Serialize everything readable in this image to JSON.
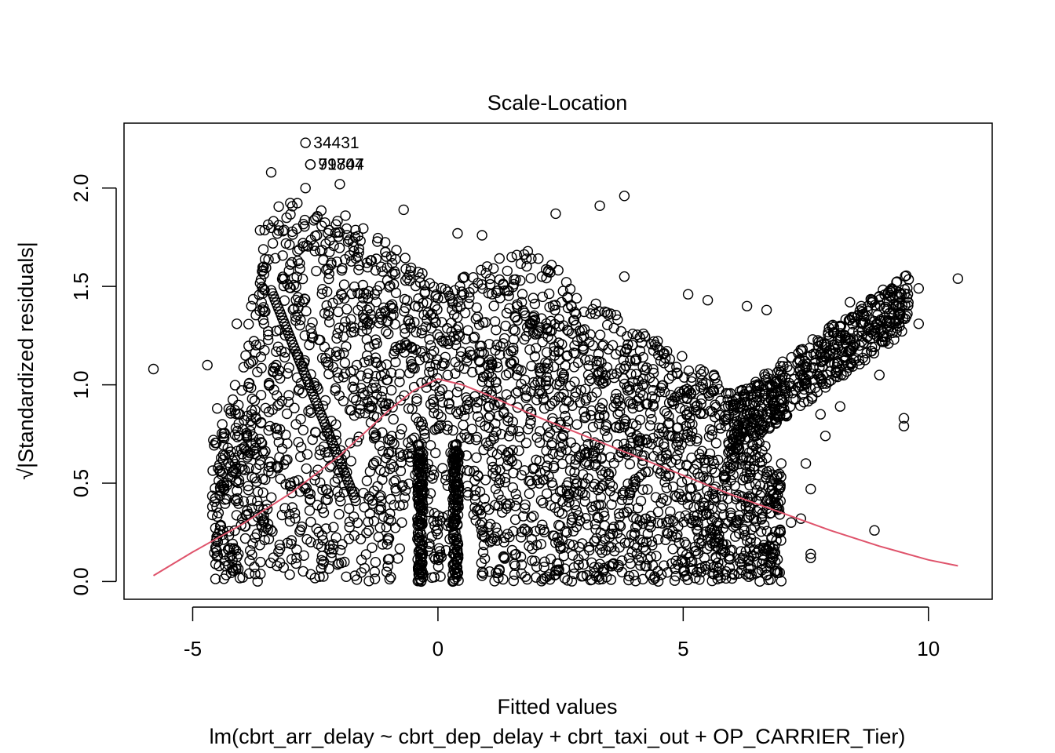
{
  "chart_data": {
    "type": "scatter",
    "title": "Scale-Location",
    "xlabel": "Fitted values",
    "sublabel": "lm(cbrt_arr_delay ~ cbrt_dep_delay + cbrt_taxi_out + OP_CARRIER_Tier)",
    "ylabel": "√|Standardized residuals|",
    "xlim": [
      -6.4,
      11.3
    ],
    "ylim": [
      -0.09,
      2.33
    ],
    "x_ticks": [
      -5,
      0,
      5,
      10
    ],
    "x_tick_labels": [
      "-5",
      "0",
      "5",
      "10"
    ],
    "y_ticks": [
      0.0,
      0.5,
      1.0,
      1.5,
      2.0
    ],
    "y_tick_labels": [
      "0.0",
      "0.5",
      "1.0",
      "1.5",
      "2.0"
    ],
    "grid": false,
    "legend": "none",
    "colors": {
      "points": "#000000",
      "smooth": "#DF536B"
    },
    "labeled_points": [
      {
        "label": "34431",
        "x": -2.7,
        "y": 2.23
      },
      {
        "label": "79707",
        "x": -2.6,
        "y": 2.12
      },
      {
        "label": "91844",
        "x": -2.6,
        "y": 2.12
      }
    ],
    "outlier_points": [
      {
        "x": -5.8,
        "y": 1.08
      },
      {
        "x": -4.7,
        "y": 1.1
      },
      {
        "x": -4.5,
        "y": 0.88
      },
      {
        "x": -4.1,
        "y": 1.31
      },
      {
        "x": -3.9,
        "y": 0.34
      },
      {
        "x": -3.4,
        "y": 2.08
      },
      {
        "x": -2.7,
        "y": 2.0
      },
      {
        "x": -2.0,
        "y": 2.02
      },
      {
        "x": -0.7,
        "y": 1.89
      },
      {
        "x": 0.4,
        "y": 1.77
      },
      {
        "x": 0.9,
        "y": 1.76
      },
      {
        "x": 2.4,
        "y": 1.87
      },
      {
        "x": 3.3,
        "y": 1.91
      },
      {
        "x": 3.8,
        "y": 1.96
      },
      {
        "x": 3.8,
        "y": 1.55
      },
      {
        "x": 5.1,
        "y": 1.46
      },
      {
        "x": 5.5,
        "y": 1.43
      },
      {
        "x": 6.3,
        "y": 1.4
      },
      {
        "x": 6.7,
        "y": 1.38
      },
      {
        "x": 5.2,
        "y": 0.06
      },
      {
        "x": 5.6,
        "y": 0.04
      },
      {
        "x": 6.0,
        "y": 0.04
      },
      {
        "x": 6.5,
        "y": 0.1
      },
      {
        "x": 6.8,
        "y": 0.22
      },
      {
        "x": 7.2,
        "y": 0.3
      },
      {
        "x": 7.4,
        "y": 0.32
      },
      {
        "x": 7.6,
        "y": 0.47
      },
      {
        "x": 7.6,
        "y": 0.14
      },
      {
        "x": 7.6,
        "y": 0.12
      },
      {
        "x": 7.0,
        "y": 0.6
      },
      {
        "x": 7.5,
        "y": 0.6
      },
      {
        "x": 7.9,
        "y": 0.74
      },
      {
        "x": 7.8,
        "y": 0.85
      },
      {
        "x": 8.2,
        "y": 0.89
      },
      {
        "x": 8.9,
        "y": 0.26
      },
      {
        "x": 9.0,
        "y": 1.05
      },
      {
        "x": 9.5,
        "y": 0.83
      },
      {
        "x": 9.5,
        "y": 0.79
      },
      {
        "x": 9.3,
        "y": 1.23
      },
      {
        "x": 9.8,
        "y": 1.31
      },
      {
        "x": 9.8,
        "y": 1.49
      },
      {
        "x": 10.6,
        "y": 1.54
      },
      {
        "x": 8.4,
        "y": 1.42
      },
      {
        "x": 9.0,
        "y": 1.45
      },
      {
        "x": 9.4,
        "y": 1.47
      }
    ],
    "dense_region_description_free": true,
    "smooth_line": {
      "x": [
        -5.8,
        -5,
        -4,
        -3,
        -2,
        -1,
        -0.5,
        0,
        0.5,
        1,
        2,
        3,
        4,
        5,
        6,
        7,
        8,
        9,
        10,
        10.6
      ],
      "y": [
        0.03,
        0.15,
        0.29,
        0.45,
        0.64,
        0.87,
        0.97,
        1.03,
        1.0,
        0.95,
        0.84,
        0.74,
        0.64,
        0.54,
        0.44,
        0.35,
        0.26,
        0.18,
        0.11,
        0.08
      ]
    }
  }
}
